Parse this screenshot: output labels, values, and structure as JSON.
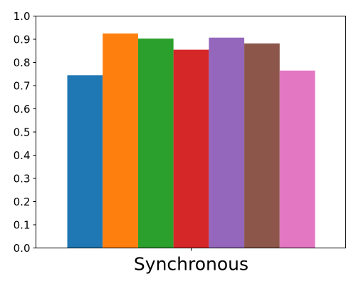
{
  "chart_data": {
    "type": "bar",
    "categories": [
      "Synchronous"
    ],
    "series": [
      {
        "values": [
          0.745
        ],
        "color": "#1f77b4"
      },
      {
        "values": [
          0.925
        ],
        "color": "#ff7f0e"
      },
      {
        "values": [
          0.903
        ],
        "color": "#2ca02c"
      },
      {
        "values": [
          0.855
        ],
        "color": "#d62728"
      },
      {
        "values": [
          0.907
        ],
        "color": "#9467bd"
      },
      {
        "values": [
          0.882
        ],
        "color": "#8c564b"
      },
      {
        "values": [
          0.765
        ],
        "color": "#e377c2"
      }
    ],
    "title": "",
    "xlabel": "",
    "ylabel": "",
    "ylim": [
      0,
      1.0
    ],
    "yticks": [
      "0.0",
      "0.1",
      "0.2",
      "0.3",
      "0.4",
      "0.5",
      "0.6",
      "0.7",
      "0.8",
      "0.9",
      "1.0"
    ],
    "grid": false,
    "legend": false
  }
}
